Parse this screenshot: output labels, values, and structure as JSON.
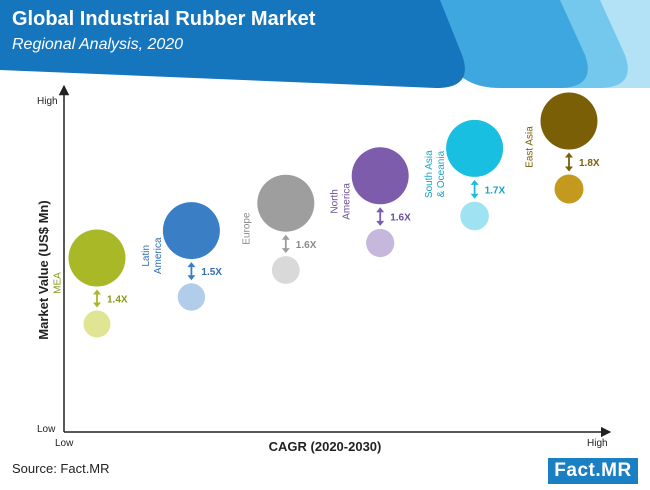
{
  "header": {
    "title": "Global Industrial Rubber Market",
    "subtitle": "Regional Analysis, 2020",
    "colors": {
      "base": "#1575bd",
      "band1": "#3ea7df",
      "band2": "#74c8ee",
      "band3": "#b3e2f6"
    }
  },
  "chart_data": {
    "type": "bubble",
    "xlabel": "CAGR (2020-2030)",
    "ylabel": "Market Value (US$ Mn)",
    "x_ticks": {
      "low": "Low",
      "high": "High"
    },
    "y_ticks": {
      "low": "Low",
      "high": "High"
    },
    "series": [
      {
        "name": "MEA",
        "label_lines": [
          "MEA"
        ],
        "multiplier": "1.4X",
        "color": "#a9b827",
        "light": "#dfe593",
        "rank": 1,
        "text_color": "#8a9a1e"
      },
      {
        "name": "Latin America",
        "label_lines": [
          "Latin",
          "America"
        ],
        "multiplier": "1.5X",
        "color": "#3a7fc6",
        "light": "#b1cdea",
        "rank": 2,
        "text_color": "#2e6fb3"
      },
      {
        "name": "Europe",
        "label_lines": [
          "Europe"
        ],
        "multiplier": "1.6X",
        "color": "#9e9e9e",
        "light": "#d9d9d9",
        "rank": 3,
        "text_color": "#8a8a8a"
      },
      {
        "name": "North America",
        "label_lines": [
          "North",
          "America"
        ],
        "multiplier": "1.6X",
        "color": "#7c5cab",
        "light": "#c6b8dd",
        "rank": 4,
        "text_color": "#6a4f98"
      },
      {
        "name": "South Asia & Oceania",
        "label_lines": [
          "South Asia",
          "& Oceania"
        ],
        "multiplier": "1.7X",
        "color": "#19bfe0",
        "light": "#9fe3f2",
        "rank": 5,
        "text_color": "#1aa3c4"
      },
      {
        "name": "East Asia",
        "label_lines": [
          "East Asia"
        ],
        "multiplier": "1.8X",
        "color": "#7a5f07",
        "light": "#c49a1e",
        "rank": 6,
        "text_color": "#7a5f07"
      }
    ]
  },
  "footer": {
    "source": "Source: Fact.MR",
    "logo": "Fact.MR"
  }
}
